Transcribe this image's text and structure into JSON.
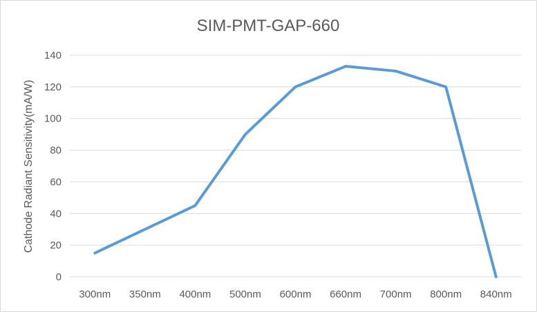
{
  "chart_data": {
    "type": "line",
    "title": "SIM-PMT-GAP-660",
    "xlabel": "",
    "ylabel": "Cathode Radiant Sensitivity(mA/W)",
    "categories": [
      "300nm",
      "350nm",
      "400nm",
      "500nm",
      "600nm",
      "660nm",
      "700nm",
      "800nm",
      "840nm"
    ],
    "series": [
      {
        "values": [
          15,
          30,
          45,
          90,
          120,
          133,
          130,
          120,
          0
        ]
      }
    ],
    "ylim": [
      0,
      140
    ],
    "yticks": [
      0,
      20,
      40,
      60,
      80,
      100,
      120,
      140
    ],
    "grid": true,
    "legend": "none",
    "colors": {
      "series": "#5b9bd5"
    }
  }
}
